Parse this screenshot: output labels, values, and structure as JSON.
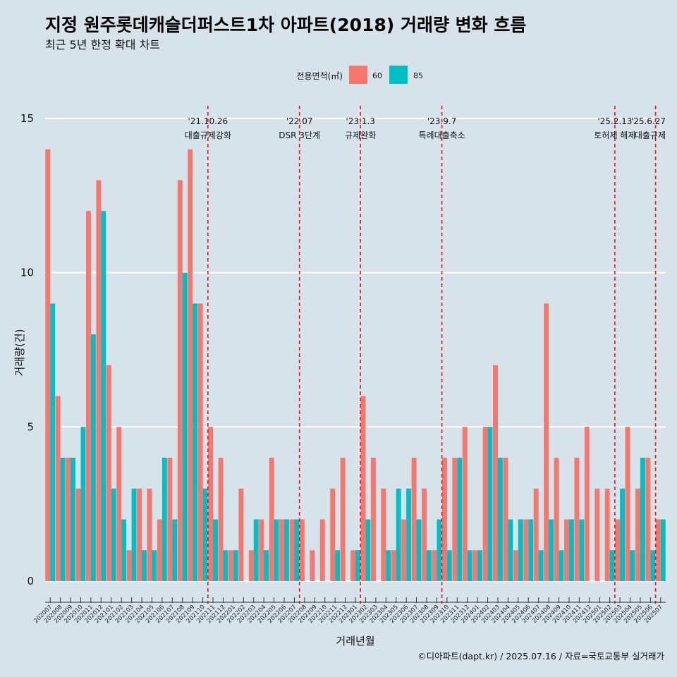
{
  "chart_data": {
    "type": "bar",
    "title": "지정 원주롯데캐슬더퍼스트1차 아파트(2018) 거래량 변화 흐름",
    "subtitle": "최근 5년 한정 확대 차트",
    "xlabel": "거래년월",
    "ylabel": "거래량(건)",
    "ylim": [
      0,
      15
    ],
    "yticks": [
      0,
      5,
      10,
      15
    ],
    "legend": {
      "title": "전용면적(㎡)",
      "position": "top"
    },
    "caption": "©디아파트(dapt.kr) / 2025.07.16 / 자료=국토교통부 실거래가",
    "colors": {
      "60": "#f8766d",
      "85": "#00bfc4",
      "event_line": "#e8141a",
      "background": "#d6e3ea"
    },
    "categories": [
      "202007",
      "202008",
      "202009",
      "202010",
      "202011",
      "202012",
      "202101",
      "202102",
      "202103",
      "202104",
      "202105",
      "202106",
      "202107",
      "202108",
      "202109",
      "202110",
      "202111",
      "202112",
      "202201",
      "202202",
      "202203",
      "202204",
      "202205",
      "202206",
      "202207",
      "202208",
      "202209",
      "202210",
      "202211",
      "202212",
      "202301",
      "202302",
      "202303",
      "202304",
      "202305",
      "202306",
      "202307",
      "202308",
      "202309",
      "202310",
      "202311",
      "202312",
      "202401",
      "202402",
      "202403",
      "202404",
      "202405",
      "202406",
      "202407",
      "202408",
      "202409",
      "202410",
      "202411",
      "202412",
      "202501",
      "202502",
      "202503",
      "202504",
      "202505",
      "202506",
      "202507"
    ],
    "series": [
      {
        "name": "60",
        "values": [
          14,
          6,
          4,
          3,
          12,
          13,
          7,
          5,
          1,
          3,
          3,
          2,
          4,
          13,
          14,
          9,
          5,
          4,
          1,
          3,
          1,
          2,
          4,
          2,
          2,
          2,
          1,
          2,
          3,
          4,
          1,
          6,
          4,
          3,
          1,
          2,
          4,
          3,
          1,
          4,
          4,
          5,
          1,
          5,
          7,
          4,
          1,
          2,
          3,
          9,
          4,
          2,
          4,
          5,
          3,
          3,
          2,
          5,
          3,
          4,
          2
        ]
      },
      {
        "name": "85",
        "values": [
          9,
          4,
          4,
          5,
          8,
          12,
          3,
          2,
          3,
          1,
          1,
          4,
          2,
          10,
          9,
          3,
          2,
          1,
          1,
          0,
          2,
          1,
          2,
          2,
          2,
          0,
          0,
          0,
          1,
          0,
          1,
          2,
          0,
          1,
          3,
          3,
          2,
          1,
          2,
          1,
          4,
          1,
          1,
          5,
          4,
          2,
          2,
          2,
          1,
          2,
          1,
          2,
          2,
          0,
          0,
          1,
          3,
          1,
          4,
          1,
          2
        ]
      }
    ],
    "events": [
      {
        "after": "202110",
        "date": "'21.10.26",
        "label": "대출규제강화"
      },
      {
        "after": "202207",
        "date": "'22.07",
        "label": "DSR 3단계"
      },
      {
        "after": "202301",
        "date": "'23.1.3",
        "label": "규제완화"
      },
      {
        "after": "202309",
        "date": "'23.9.7",
        "label": "특례대출축소"
      },
      {
        "after": "202502",
        "date": "'25.2.13",
        "label": "토허제 해제"
      },
      {
        "after": "202506",
        "date": "'25.6.27",
        "label": "대출규제"
      }
    ]
  }
}
